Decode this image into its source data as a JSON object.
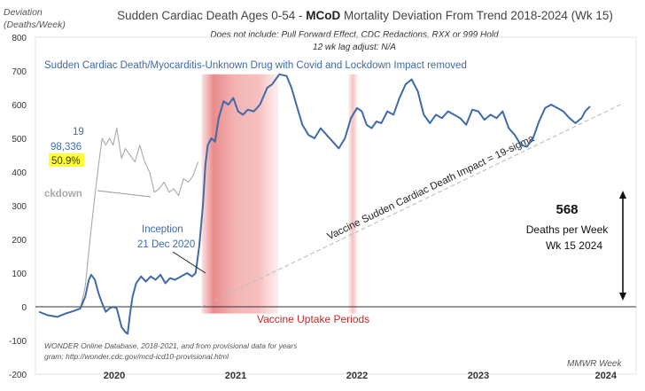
{
  "chart_data": {
    "type": "line",
    "title": {
      "prefix": "Sudden Cardiac Death Ages 0-54 - ",
      "bold": "MCoD",
      "suffix": " Mortality Deviation From Trend  2018-2024 (Wk 15)"
    },
    "subtitle_lines": [
      "Does not include: Pull Forward Effect,  CDC Redactions, RXX or 999 Hold",
      "12 wk lag adjust: N/A"
    ],
    "ylabel_lines": [
      "Deviation",
      "(Deaths/Week)"
    ],
    "xlabel": "MMWR Week",
    "ylim": [
      -200,
      800
    ],
    "yticks": [
      -200,
      -100,
      0,
      100,
      200,
      300,
      400,
      500,
      600,
      700,
      800
    ],
    "xlim": [
      2019.35,
      2024.3
    ],
    "year_labels": [
      {
        "label": "2020",
        "x": 2020.0
      },
      {
        "label": "2021",
        "x": 2021.0
      },
      {
        "label": "2022",
        "x": 2022.0
      },
      {
        "label": "2023",
        "x": 2023.0
      },
      {
        "label": "2024",
        "x": 2024.05
      }
    ],
    "series": [
      {
        "name": "Sudden Cardiac Death/Myocarditis-Unknown Drug with Covid and Lockdown Impact removed",
        "color": "#3f6aaa",
        "points": [
          [
            2019.38,
            -15
          ],
          [
            2019.45,
            -25
          ],
          [
            2019.53,
            -30
          ],
          [
            2019.6,
            -20
          ],
          [
            2019.67,
            -12
          ],
          [
            2019.72,
            -5
          ],
          [
            2019.76,
            30
          ],
          [
            2019.79,
            80
          ],
          [
            2019.81,
            95
          ],
          [
            2019.84,
            80
          ],
          [
            2019.87,
            40
          ],
          [
            2019.9,
            10
          ],
          [
            2019.93,
            -15
          ],
          [
            2019.96,
            -5
          ],
          [
            2019.99,
            0
          ],
          [
            2020.02,
            -5
          ],
          [
            2020.06,
            -60
          ],
          [
            2020.09,
            -75
          ],
          [
            2020.11,
            -80
          ],
          [
            2020.13,
            -20
          ],
          [
            2020.15,
            30
          ],
          [
            2020.18,
            70
          ],
          [
            2020.22,
            90
          ],
          [
            2020.26,
            75
          ],
          [
            2020.3,
            90
          ],
          [
            2020.34,
            80
          ],
          [
            2020.38,
            95
          ],
          [
            2020.42,
            70
          ],
          [
            2020.46,
            85
          ],
          [
            2020.5,
            80
          ],
          [
            2020.55,
            90
          ],
          [
            2020.6,
            100
          ],
          [
            2020.64,
            90
          ],
          [
            2020.67,
            100
          ],
          [
            2020.7,
            180
          ],
          [
            2020.73,
            300
          ],
          [
            2020.75,
            420
          ],
          [
            2020.77,
            480
          ],
          [
            2020.8,
            500
          ],
          [
            2020.83,
            490
          ],
          [
            2020.86,
            560
          ],
          [
            2020.9,
            610
          ],
          [
            2020.94,
            600
          ],
          [
            2020.98,
            620
          ],
          [
            2021.02,
            580
          ],
          [
            2021.06,
            570
          ],
          [
            2021.1,
            585
          ],
          [
            2021.15,
            580
          ],
          [
            2021.2,
            600
          ],
          [
            2021.26,
            650
          ],
          [
            2021.3,
            660
          ],
          [
            2021.36,
            690
          ],
          [
            2021.42,
            685
          ],
          [
            2021.46,
            650
          ],
          [
            2021.5,
            600
          ],
          [
            2021.55,
            540
          ],
          [
            2021.6,
            510
          ],
          [
            2021.65,
            500
          ],
          [
            2021.7,
            530
          ],
          [
            2021.75,
            510
          ],
          [
            2021.8,
            490
          ],
          [
            2021.85,
            470
          ],
          [
            2021.9,
            500
          ],
          [
            2021.95,
            560
          ],
          [
            2022.0,
            590
          ],
          [
            2022.04,
            580
          ],
          [
            2022.08,
            540
          ],
          [
            2022.12,
            530
          ],
          [
            2022.16,
            550
          ],
          [
            2022.2,
            545
          ],
          [
            2022.25,
            580
          ],
          [
            2022.3,
            570
          ],
          [
            2022.35,
            620
          ],
          [
            2022.4,
            660
          ],
          [
            2022.45,
            675
          ],
          [
            2022.5,
            640
          ],
          [
            2022.55,
            570
          ],
          [
            2022.6,
            545
          ],
          [
            2022.65,
            570
          ],
          [
            2022.7,
            560
          ],
          [
            2022.75,
            580
          ],
          [
            2022.8,
            570
          ],
          [
            2022.85,
            560
          ],
          [
            2022.9,
            540
          ],
          [
            2022.95,
            585
          ],
          [
            2023.0,
            580
          ],
          [
            2023.05,
            555
          ],
          [
            2023.1,
            570
          ],
          [
            2023.15,
            560
          ],
          [
            2023.2,
            580
          ],
          [
            2023.25,
            530
          ],
          [
            2023.3,
            510
          ],
          [
            2023.35,
            480
          ],
          [
            2023.4,
            475
          ],
          [
            2023.45,
            500
          ],
          [
            2023.5,
            550
          ],
          [
            2023.55,
            590
          ],
          [
            2023.6,
            600
          ],
          [
            2023.65,
            590
          ],
          [
            2023.7,
            580
          ],
          [
            2023.75,
            560
          ],
          [
            2023.8,
            545
          ],
          [
            2023.85,
            560
          ],
          [
            2023.88,
            580
          ],
          [
            2023.92,
            595
          ]
        ]
      },
      {
        "name": "Lockdown",
        "color": "#a9a9a9",
        "points": [
          [
            2019.72,
            -5
          ],
          [
            2019.76,
            60
          ],
          [
            2019.8,
            200
          ],
          [
            2019.84,
            330
          ],
          [
            2019.87,
            420
          ],
          [
            2019.9,
            500
          ],
          [
            2019.93,
            480
          ],
          [
            2019.96,
            500
          ],
          [
            2019.99,
            480
          ],
          [
            2020.02,
            530
          ],
          [
            2020.06,
            440
          ],
          [
            2020.09,
            470
          ],
          [
            2020.13,
            450
          ],
          [
            2020.17,
            430
          ],
          [
            2020.21,
            480
          ],
          [
            2020.25,
            430
          ],
          [
            2020.29,
            400
          ],
          [
            2020.33,
            340
          ],
          [
            2020.37,
            350
          ],
          [
            2020.41,
            370
          ],
          [
            2020.45,
            340
          ],
          [
            2020.49,
            350
          ],
          [
            2020.53,
            330
          ],
          [
            2020.57,
            380
          ],
          [
            2020.61,
            370
          ],
          [
            2020.65,
            390
          ],
          [
            2020.69,
            430
          ]
        ]
      }
    ],
    "trend_line": {
      "label": "Vaccine Sudden Cardiac Death Impact = 19-sigma",
      "from": [
        2020.72,
        0
      ],
      "to": [
        2024.17,
        600
      ]
    },
    "shaded_periods_label": "Vaccine Uptake Periods",
    "shaded_periods": [
      {
        "start": 2020.72,
        "end": 2021.35,
        "peak": 2020.78
      },
      {
        "start": 2021.93,
        "end": 2022.0,
        "peak": 2021.96
      }
    ],
    "annotations": {
      "left_box": {
        "line1": "19",
        "line2": "98,336",
        "highlight": "50.9%"
      },
      "lockdown": "ckdown",
      "inception": [
        "Inception",
        "21 Dec 2020"
      ],
      "right_box": {
        "value": "568",
        "line2": "Deaths per Week",
        "line3": "Wk 15 2024"
      },
      "source_lines": [
        "WONDER Online Database, 2018-2021, and from provisional data for years",
        "gram; http://wonder.cdc.gov/mcd-icd10-provisional.html"
      ]
    }
  }
}
